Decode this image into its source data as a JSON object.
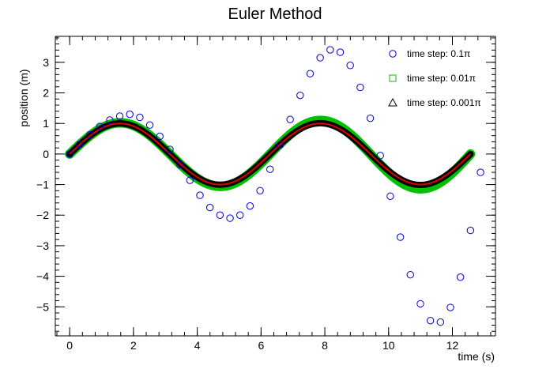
{
  "chart_data": {
    "type": "scatter",
    "title": "Euler Method",
    "xlabel": "time (s)",
    "ylabel": "position (m)",
    "xlim": [
      -0.45,
      13.35
    ],
    "ylim": [
      -5.95,
      3.85
    ],
    "xticks": [
      0,
      2,
      4,
      6,
      8,
      10,
      12
    ],
    "yticks": [
      -5,
      -4,
      -3,
      -2,
      -1,
      0,
      1,
      2,
      3
    ],
    "grid": false,
    "legend_position": "top-right",
    "series": [
      {
        "name": "time step: 0.1π",
        "marker": "open-circle",
        "color": "#0000cc",
        "x": [
          0.0,
          0.314,
          0.628,
          0.942,
          1.257,
          1.571,
          1.885,
          2.199,
          2.513,
          2.827,
          3.142,
          3.456,
          3.77,
          4.084,
          4.398,
          4.712,
          5.027,
          5.341,
          5.655,
          5.969,
          6.283,
          6.597,
          6.912,
          7.226,
          7.54,
          7.854,
          8.168,
          8.482,
          8.796,
          9.111,
          9.425,
          9.739,
          10.053,
          10.367,
          10.681,
          10.996,
          11.31,
          11.624,
          11.938,
          12.252,
          12.566,
          12.881
        ],
        "y": [
          0.0,
          0.314,
          0.628,
          0.9,
          1.11,
          1.24,
          1.3,
          1.2,
          0.95,
          0.58,
          0.15,
          -0.35,
          -0.86,
          -1.35,
          -1.75,
          -2.0,
          -2.1,
          -2.0,
          -1.7,
          -1.2,
          -0.5,
          0.3,
          1.13,
          1.92,
          2.63,
          3.15,
          3.41,
          3.33,
          2.9,
          2.18,
          1.17,
          -0.05,
          -1.38,
          -2.72,
          -3.95,
          -4.9,
          -5.45,
          -5.5,
          -5.02,
          -4.03,
          -2.5,
          -0.6
        ]
      },
      {
        "name": "time step: 0.01π",
        "marker": "open-square",
        "color": "#00c000"
      },
      {
        "name": "time step: 0.001π",
        "marker": "open-triangle",
        "color": "#000000"
      }
    ],
    "reference_curve": {
      "color": "#dd0000"
    }
  }
}
